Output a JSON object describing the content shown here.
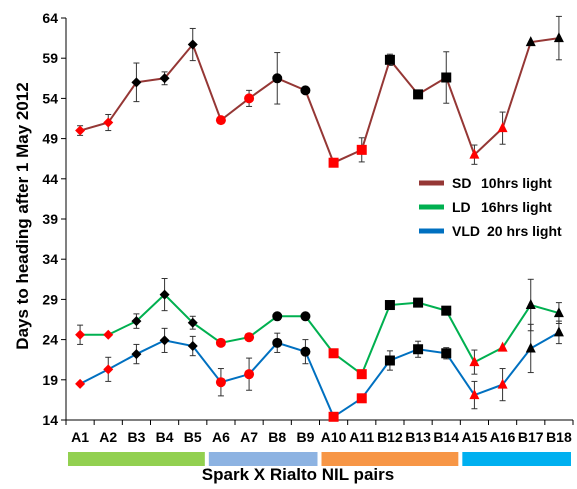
{
  "chart_data": {
    "type": "line",
    "xlabel": "Spark X Rialto NIL pairs",
    "ylabel": "Days to heading after 1 May 2012",
    "ylim": [
      14,
      64
    ],
    "yticks": [
      14,
      19,
      24,
      29,
      34,
      39,
      44,
      49,
      54,
      59,
      64
    ],
    "categories": [
      "A1",
      "A2",
      "B3",
      "B4",
      "B5",
      "A6",
      "A7",
      "B8",
      "B9",
      "A10",
      "A11",
      "B12",
      "B13",
      "B14",
      "A15",
      "A16",
      "B17",
      "B18"
    ],
    "group_bar_colors": [
      "#92d050",
      "#8db3e2",
      "#f79646",
      "#00b0f0"
    ],
    "group_bar_spans": [
      [
        0,
        4
      ],
      [
        5,
        8
      ],
      [
        9,
        13
      ],
      [
        14,
        17
      ]
    ],
    "marker_shapes": [
      "diamond",
      "diamond",
      "diamond",
      "diamond",
      "diamond",
      "circle",
      "circle",
      "circle",
      "circle",
      "square",
      "square",
      "square",
      "square",
      "square",
      "triangle",
      "triangle",
      "triangle",
      "triangle"
    ],
    "marker_colors": [
      "#ff0000",
      "#ff0000",
      "#000000",
      "#000000",
      "#000000",
      "#ff0000",
      "#ff0000",
      "#000000",
      "#000000",
      "#ff0000",
      "#ff0000",
      "#000000",
      "#000000",
      "#000000",
      "#ff0000",
      "#ff0000",
      "#000000",
      "#000000"
    ],
    "series": [
      {
        "name": "SD",
        "legend_text": "10hrs light",
        "color": "#953735",
        "values": [
          50,
          51,
          56,
          56.5,
          60.7,
          51.3,
          54,
          56.5,
          55,
          46,
          47.6,
          58.8,
          54.5,
          56.6,
          47,
          50.3,
          61,
          61.5
        ],
        "errors": [
          0.6,
          1,
          2.4,
          0.8,
          2,
          0,
          1,
          3.2,
          0,
          0,
          1.5,
          0.7,
          0,
          3.2,
          1.2,
          2,
          0,
          2.7
        ]
      },
      {
        "name": "LD",
        "legend_text": "16hrs light",
        "color": "#00b050",
        "values": [
          24.6,
          24.6,
          26.3,
          29.6,
          26.1,
          23.6,
          24.3,
          26.9,
          26.9,
          22.3,
          19.7,
          28.3,
          28.6,
          27.6,
          21.2,
          23,
          28.3,
          27.3
        ],
        "errors": [
          1.2,
          0,
          0.9,
          2,
          0.8,
          0,
          0,
          0,
          0,
          0,
          0,
          0,
          0,
          0,
          1.5,
          0,
          3.2,
          1.3
        ]
      },
      {
        "name": "VLD",
        "legend_text": "20 hrs light",
        "color": "#0070c0",
        "values": [
          18.5,
          20.3,
          22.2,
          23.9,
          23.2,
          18.7,
          19.7,
          23.6,
          22.5,
          14.4,
          16.7,
          21.4,
          22.8,
          22.3,
          17.1,
          18.4,
          22.9,
          24.9
        ],
        "errors": [
          0,
          1.5,
          1.2,
          1.5,
          1.2,
          1.7,
          2,
          1.2,
          1.5,
          0,
          0,
          1.2,
          1,
          0.7,
          1.7,
          2,
          3,
          1.4
        ]
      }
    ],
    "legend_position": "right-middle",
    "grid": false
  }
}
